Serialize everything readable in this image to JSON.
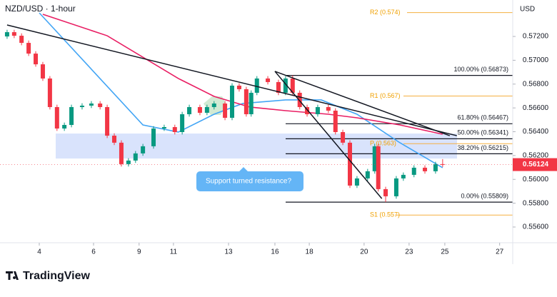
{
  "header": {
    "title": "NZD/USD · 1-hour",
    "currency": "USD",
    "brand": "TradingView"
  },
  "chart_data": {
    "type": "candlestick",
    "x": [
      -1.18,
      -0.92,
      -0.65,
      -0.39,
      -0.13,
      0.13,
      0.39,
      0.65,
      0.92,
      1.18,
      1.57,
      1.91,
      2.23,
      2.49,
      2.75,
      3.01,
      3.27,
      3.53,
      3.8,
      4.19,
      4.58,
      4.97,
      5.24,
      5.5,
      5.89,
      6.15,
      6.41,
      6.81,
      7.07,
      7.33,
      7.59,
      7.77,
      7.98,
      8.38,
      8.77,
      9.03,
      9.29,
      9.55,
      9.82,
      10.21,
      10.6,
      10.86,
      11.13,
      11.39,
      11.65,
      12.04,
      12.3,
      12.43,
      12.7,
      13.09,
      13.35,
      13.74,
      14.14,
      14.53,
      14.79
    ],
    "open": [
      0.572,
      0.57236,
      0.57206,
      0.57146,
      0.57056,
      0.56966,
      0.56847,
      0.56607,
      0.56427,
      0.56457,
      0.56607,
      0.56619,
      0.56637,
      0.56607,
      0.56367,
      0.56308,
      0.56128,
      0.56158,
      0.56218,
      0.56278,
      0.56427,
      0.56439,
      0.56397,
      0.56547,
      0.56607,
      0.56559,
      0.56607,
      0.56637,
      0.56517,
      0.56787,
      0.56757,
      0.56547,
      0.56727,
      0.56847,
      0.56817,
      0.56727,
      0.56847,
      0.56727,
      0.56607,
      0.56547,
      0.56607,
      0.56577,
      0.56397,
      0.56308,
      0.55948,
      0.56008,
      0.56068,
      0.56278,
      0.55918,
      0.55858,
      0.56008,
      0.56038,
      0.56098,
      0.56068,
      0.56128
    ],
    "high": [
      0.57256,
      0.57256,
      0.57226,
      0.57166,
      0.57076,
      0.56986,
      0.56867,
      0.56627,
      0.56477,
      0.56627,
      0.56639,
      0.56657,
      0.56657,
      0.56627,
      0.56387,
      0.56328,
      0.56178,
      0.56238,
      0.56298,
      0.56447,
      0.56459,
      0.56459,
      0.56567,
      0.56627,
      0.56627,
      0.56627,
      0.56657,
      0.56657,
      0.56807,
      0.56807,
      0.56777,
      0.56747,
      0.56867,
      0.56867,
      0.56837,
      0.56867,
      0.56873,
      0.56747,
      0.56627,
      0.56627,
      0.56627,
      0.56597,
      0.56417,
      0.56328,
      0.56028,
      0.56088,
      0.563,
      0.56298,
      0.55938,
      0.56028,
      0.56058,
      0.56118,
      0.56118,
      0.56148,
      0.5617
    ],
    "low": [
      0.5718,
      0.57186,
      0.57126,
      0.57036,
      0.56946,
      0.56827,
      0.56587,
      0.56407,
      0.56407,
      0.56437,
      0.56587,
      0.56599,
      0.56587,
      0.56347,
      0.56288,
      0.56108,
      0.56108,
      0.56138,
      0.56198,
      0.56258,
      0.56407,
      0.56377,
      0.56377,
      0.56527,
      0.56539,
      0.56539,
      0.56587,
      0.56497,
      0.56497,
      0.56737,
      0.56527,
      0.56527,
      0.56707,
      0.56797,
      0.56707,
      0.56707,
      0.56707,
      0.56587,
      0.56527,
      0.56527,
      0.56557,
      0.56377,
      0.56288,
      0.55928,
      0.55928,
      0.55988,
      0.56048,
      0.55898,
      0.55809,
      0.55838,
      0.55988,
      0.56018,
      0.56048,
      0.56048,
      0.56104
    ],
    "close": [
      0.57236,
      0.57206,
      0.57146,
      0.57056,
      0.56966,
      0.56847,
      0.56607,
      0.56427,
      0.56457,
      0.56607,
      0.56619,
      0.56637,
      0.56607,
      0.56367,
      0.56308,
      0.56128,
      0.56158,
      0.56218,
      0.56278,
      0.56427,
      0.56439,
      0.56397,
      0.56547,
      0.56607,
      0.56559,
      0.56607,
      0.56637,
      0.56517,
      0.56787,
      0.56757,
      0.56547,
      0.56727,
      0.56847,
      0.56817,
      0.56727,
      0.56847,
      0.56727,
      0.56607,
      0.56547,
      0.56607,
      0.56577,
      0.56397,
      0.56308,
      0.55948,
      0.56008,
      0.56068,
      0.56278,
      0.55918,
      0.55858,
      0.56008,
      0.56038,
      0.56098,
      0.56068,
      0.56128,
      0.56124
    ],
    "up_color": "#089981",
    "down_color": "#f23645",
    "indicators": [
      {
        "color": "#42a5f5",
        "x": [
          0,
          3.8,
          5.1,
          6.41,
          7.46,
          9.03,
          10.34,
          11.65,
          13.22,
          14.79
        ],
        "values": [
          0.57398,
          0.56457,
          0.56397,
          0.56547,
          0.56637,
          0.56667,
          0.56667,
          0.56547,
          0.56308,
          0.56098
        ]
      },
      {
        "color": "#e91e63",
        "x": [
          0.13,
          2.49,
          5.1,
          6.41,
          7.72,
          9.03,
          10.6,
          11.65,
          13.22,
          14.79
        ],
        "values": [
          0.57386,
          0.57206,
          0.56847,
          0.56697,
          0.56607,
          0.56577,
          0.56547,
          0.56517,
          0.56457,
          0.56379
        ]
      }
    ],
    "trendlines": [
      {
        "x": [
          -1.18,
          15.31
        ],
        "y": [
          0.57296,
          0.56367
        ]
      },
      {
        "x": [
          8.64,
          15.05
        ],
        "y": [
          0.56907,
          0.56367
        ]
      },
      {
        "x": [
          8.64,
          12.56
        ],
        "y": [
          0.56907,
          0.55839
        ]
      }
    ],
    "fib_levels": [
      {
        "value": 0.56873,
        "label": "100.00% (0.56873)"
      },
      {
        "value": 0.56467,
        "label": "61.80% (0.56467)"
      },
      {
        "value": 0.56341,
        "label": "50.00% (0.56341)"
      },
      {
        "value": 0.56215,
        "label": "38.20% (0.56215)"
      },
      {
        "value": 0.55809,
        "label": "0.00% (0.55809)"
      }
    ],
    "pivots": [
      {
        "value": 0.574,
        "label": "R2 (0.574)"
      },
      {
        "value": 0.567,
        "label": "R1 (0.567)"
      },
      {
        "value": 0.563,
        "label": "P (0.563)"
      },
      {
        "value": 0.557,
        "label": "S1 (0.557)"
      }
    ],
    "zone": {
      "y": [
        0.56175,
        0.56385
      ],
      "color": "#cfdcfb"
    },
    "annotation": "Support turned resistance?",
    "last_price": {
      "value": 0.56124,
      "label": "0.56124"
    },
    "xlim": [
      -1.44,
      17.36
    ],
    "ylim": [
      0.55468,
      0.57506
    ],
    "xticks": [
      {
        "value": 0,
        "label": "4"
      },
      {
        "value": 1.99,
        "label": "6"
      },
      {
        "value": 3.66,
        "label": "9"
      },
      {
        "value": 4.92,
        "label": "11"
      },
      {
        "value": 6.94,
        "label": "13"
      },
      {
        "value": 8.64,
        "label": "16"
      },
      {
        "value": 9.9,
        "label": "18"
      },
      {
        "value": 11.91,
        "label": "20"
      },
      {
        "value": 13.56,
        "label": "23"
      },
      {
        "value": 14.87,
        "label": "25"
      },
      {
        "value": 16.88,
        "label": "27"
      }
    ],
    "yticks": [
      {
        "value": 0.572,
        "label": "0.57200"
      },
      {
        "value": 0.57,
        "label": "0.57000"
      },
      {
        "value": 0.568,
        "label": "0.56800"
      },
      {
        "value": 0.566,
        "label": "0.56600"
      },
      {
        "value": 0.564,
        "label": "0.56400"
      },
      {
        "value": 0.562,
        "label": "0.56200"
      },
      {
        "value": 0.56,
        "label": "0.56000"
      },
      {
        "value": 0.558,
        "label": "0.55800"
      },
      {
        "value": 0.556,
        "label": "0.55600"
      }
    ]
  }
}
